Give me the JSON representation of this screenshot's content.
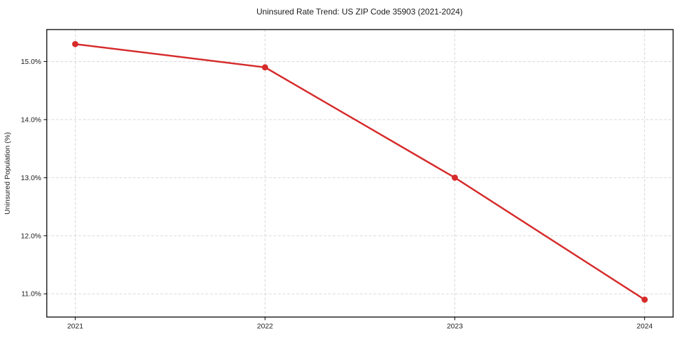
{
  "chart_data": {
    "type": "line",
    "title": "Uninsured Rate Trend: US ZIP Code 35903 (2021-2024)",
    "xlabel": "",
    "ylabel": "Uninsured Population (%)",
    "x": [
      2021,
      2022,
      2023,
      2024
    ],
    "series": [
      {
        "name": "Uninsured Rate",
        "values": [
          15.3,
          14.9,
          13.0,
          10.9
        ]
      }
    ],
    "x_tick_labels": [
      "2021",
      "2022",
      "2023",
      "2024"
    ],
    "y_ticks": [
      11.0,
      12.0,
      13.0,
      14.0,
      15.0
    ],
    "y_tick_labels": [
      "11.0%",
      "12.0%",
      "13.0%",
      "14.0%",
      "15.0%"
    ],
    "xlim": [
      2020.85,
      2024.15
    ],
    "ylim": [
      10.6,
      15.55
    ],
    "grid": true,
    "grid_style": "dashed",
    "legend": "none",
    "marker": "circle",
    "colors": {
      "line": "#d62b2b",
      "marker": "#d62b2b",
      "grid": "#cccccc",
      "frame": "#000000",
      "background": "#ffffff",
      "text": "#1a1a1a"
    }
  }
}
